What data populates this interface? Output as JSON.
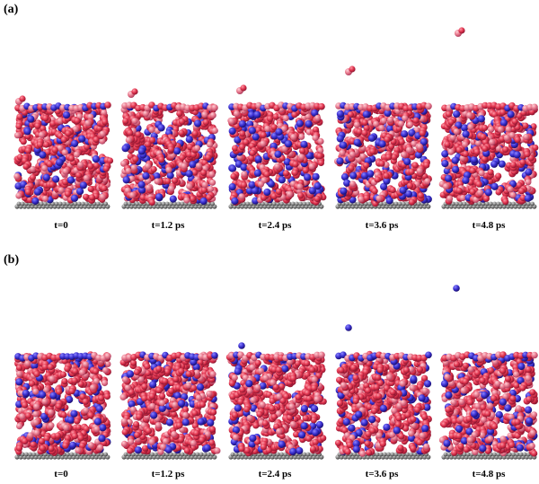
{
  "panels": [
    {
      "label": "(a)",
      "escaping_species": "red-pink molecule",
      "frames": [
        {
          "time_label": "t=0"
        },
        {
          "time_label": "t=1.2 ps"
        },
        {
          "time_label": "t=2.4 ps"
        },
        {
          "time_label": "t=3.6 ps"
        },
        {
          "time_label": "t=4.8 ps"
        }
      ]
    },
    {
      "label": "(b)",
      "escaping_species": "blue atom",
      "frames": [
        {
          "time_label": "t=0"
        },
        {
          "time_label": "t=1.2 ps"
        },
        {
          "time_label": "t=2.4 ps"
        },
        {
          "time_label": "t=3.6 ps"
        },
        {
          "time_label": "t=4.8 ps"
        }
      ]
    }
  ],
  "colors": {
    "red": "#e0344e",
    "pink": "#e8788c",
    "blue": "#3a2fd0",
    "substrate": "#888888"
  }
}
